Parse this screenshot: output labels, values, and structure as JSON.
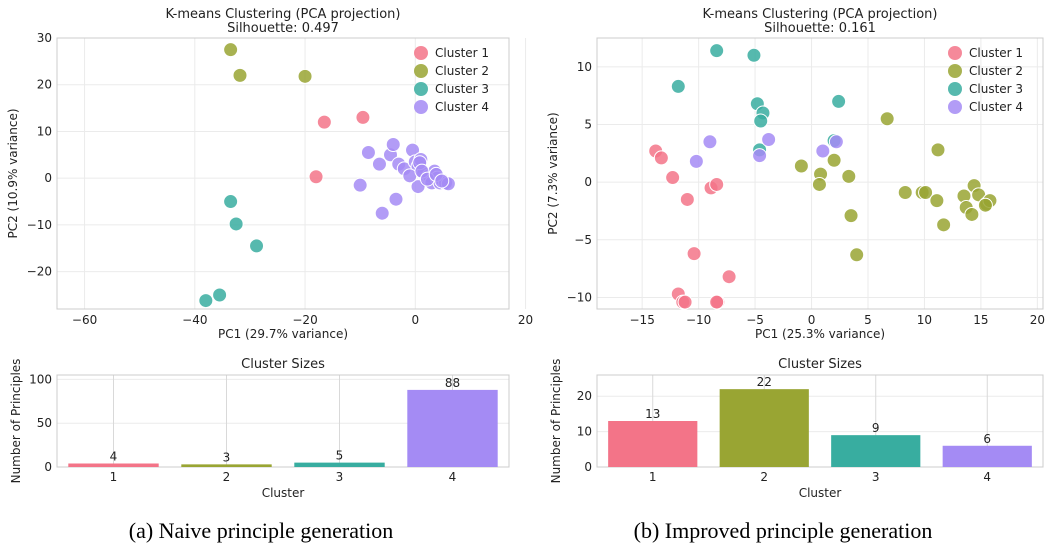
{
  "colors": {
    "cluster_1": "#f37488",
    "cluster_2": "#99a533",
    "cluster_3": "#38ada0",
    "cluster_4": "#a48bf4"
  },
  "captions": {
    "a": "(a) Naive principle generation",
    "b": "(b) Improved principle generation"
  },
  "chart_data": [
    {
      "type": "scatter",
      "title": "K-means Clustering (PCA projection)",
      "subtitle": "Silhouette: 0.497",
      "xlabel": "PC1 (29.7% variance)",
      "ylabel": "PC2 (10.9% variance)",
      "xlim": [
        -65,
        17
      ],
      "ylim": [
        -28,
        30
      ],
      "xticks": [
        -60,
        -40,
        -20,
        0,
        20
      ],
      "yticks": [
        -20,
        -10,
        0,
        10,
        20,
        30
      ],
      "grid": true,
      "legend": "top-right",
      "series": [
        {
          "name": "Cluster 1",
          "points": [
            [
              -16.5,
              12
            ],
            [
              -9.5,
              13
            ],
            [
              -18,
              0.3
            ]
          ]
        },
        {
          "name": "Cluster 2",
          "points": [
            [
              -33.5,
              27.5
            ],
            [
              -31.8,
              22
            ],
            [
              -20,
              21.8
            ]
          ]
        },
        {
          "name": "Cluster 3",
          "points": [
            [
              -33.5,
              -5
            ],
            [
              -32.5,
              -9.8
            ],
            [
              -28.8,
              -14.5
            ],
            [
              -35.5,
              -25
            ],
            [
              -38,
              -26.2
            ]
          ]
        },
        {
          "name": "Cluster 4",
          "points": [
            [
              -8.5,
              5.5
            ],
            [
              -6.5,
              3
            ],
            [
              -4.5,
              5
            ],
            [
              -4,
              7.2
            ],
            [
              -3,
              3
            ],
            [
              -2,
              2
            ],
            [
              -0.5,
              6
            ],
            [
              0,
              3.5
            ],
            [
              0.5,
              2.5
            ],
            [
              1,
              4
            ],
            [
              1.5,
              1
            ],
            [
              2,
              -0.5
            ],
            [
              2.5,
              0.5
            ],
            [
              3,
              -1
            ],
            [
              3.5,
              1.5
            ],
            [
              4,
              0
            ],
            [
              4.5,
              -1
            ],
            [
              5,
              -0.5
            ],
            [
              5.5,
              -1
            ],
            [
              6,
              -1.2
            ],
            [
              0.5,
              -1.8
            ],
            [
              -1,
              0.5
            ],
            [
              -3.5,
              -4.5
            ],
            [
              -6,
              -7.5
            ],
            [
              -10,
              -1.5
            ],
            [
              0.8,
              3.3
            ],
            [
              1.2,
              1.5
            ],
            [
              2.2,
              -0.2
            ],
            [
              3.8,
              0.8
            ],
            [
              4.8,
              -0.6
            ]
          ]
        }
      ]
    },
    {
      "type": "scatter",
      "title": "K-means Clustering (PCA projection)",
      "subtitle": "Silhouette: 0.161",
      "xlabel": "PC1 (25.3% variance)",
      "ylabel": "PC2 (7.3% variance)",
      "xlim": [
        -19,
        20.5
      ],
      "ylim": [
        -11,
        12.5
      ],
      "xticks": [
        -15,
        -10,
        -5,
        0,
        5,
        10,
        15,
        20
      ],
      "yticks": [
        -10,
        -5,
        0,
        5,
        10
      ],
      "grid": true,
      "legend": "top-right",
      "series": [
        {
          "name": "Cluster 1",
          "points": [
            [
              -13.8,
              2.7
            ],
            [
              -13.3,
              2.1
            ],
            [
              -12.3,
              0.4
            ],
            [
              -11,
              -1.5
            ],
            [
              -8.9,
              -0.5
            ],
            [
              -8.4,
              -0.2
            ],
            [
              -10.4,
              -6.2
            ],
            [
              -7.3,
              -8.2
            ],
            [
              -11.8,
              -9.7
            ],
            [
              -11.4,
              -10.4
            ],
            [
              -11.2,
              -10.4
            ],
            [
              -8.3,
              -10.4
            ],
            [
              -8.4,
              -10.4
            ]
          ]
        },
        {
          "name": "Cluster 2",
          "points": [
            [
              -0.9,
              1.4
            ],
            [
              0.8,
              0.7
            ],
            [
              0.7,
              -0.2
            ],
            [
              2.0,
              1.9
            ],
            [
              3.3,
              0.5
            ],
            [
              3.5,
              -2.9
            ],
            [
              4.0,
              -6.3
            ],
            [
              6.7,
              5.5
            ],
            [
              8.3,
              -0.9
            ],
            [
              9.8,
              -0.9
            ],
            [
              10.1,
              -0.9
            ],
            [
              11.2,
              2.8
            ],
            [
              11.1,
              -1.6
            ],
            [
              11.7,
              -3.7
            ],
            [
              13.5,
              -1.2
            ],
            [
              13.7,
              -2.2
            ],
            [
              14.4,
              -0.3
            ],
            [
              14.8,
              -1.1
            ],
            [
              14.2,
              -2.8
            ],
            [
              15.5,
              -1.9
            ],
            [
              15.8,
              -1.6
            ],
            [
              15.4,
              -2.0
            ]
          ]
        },
        {
          "name": "Cluster 3",
          "points": [
            [
              -11.8,
              8.3
            ],
            [
              -8.4,
              11.4
            ],
            [
              -5.1,
              11
            ],
            [
              -4.8,
              6.8
            ],
            [
              -4.3,
              6
            ],
            [
              -4.5,
              5.3
            ],
            [
              -4.6,
              2.8
            ],
            [
              2.4,
              7
            ],
            [
              2.0,
              3.6
            ]
          ]
        },
        {
          "name": "Cluster 4",
          "points": [
            [
              -10.2,
              1.8
            ],
            [
              -9,
              3.5
            ],
            [
              -4.6,
              2.3
            ],
            [
              -3.8,
              3.7
            ],
            [
              1,
              2.7
            ],
            [
              2.2,
              3.5
            ]
          ]
        }
      ]
    },
    {
      "type": "bar",
      "title": "Cluster Sizes",
      "xlabel": "Cluster",
      "ylabel": "Number of Principles",
      "categories": [
        "1",
        "2",
        "3",
        "4"
      ],
      "values": [
        4,
        3,
        5,
        88
      ],
      "ylim": [
        0,
        105
      ],
      "yticks": [
        0,
        50,
        100
      ],
      "grid": true
    },
    {
      "type": "bar",
      "title": "Cluster Sizes",
      "xlabel": "Cluster",
      "ylabel": "Number of Principles",
      "categories": [
        "1",
        "2",
        "3",
        "4"
      ],
      "values": [
        13,
        22,
        9,
        6
      ],
      "ylim": [
        0,
        26
      ],
      "yticks": [
        0,
        10,
        20
      ],
      "grid": true
    }
  ]
}
